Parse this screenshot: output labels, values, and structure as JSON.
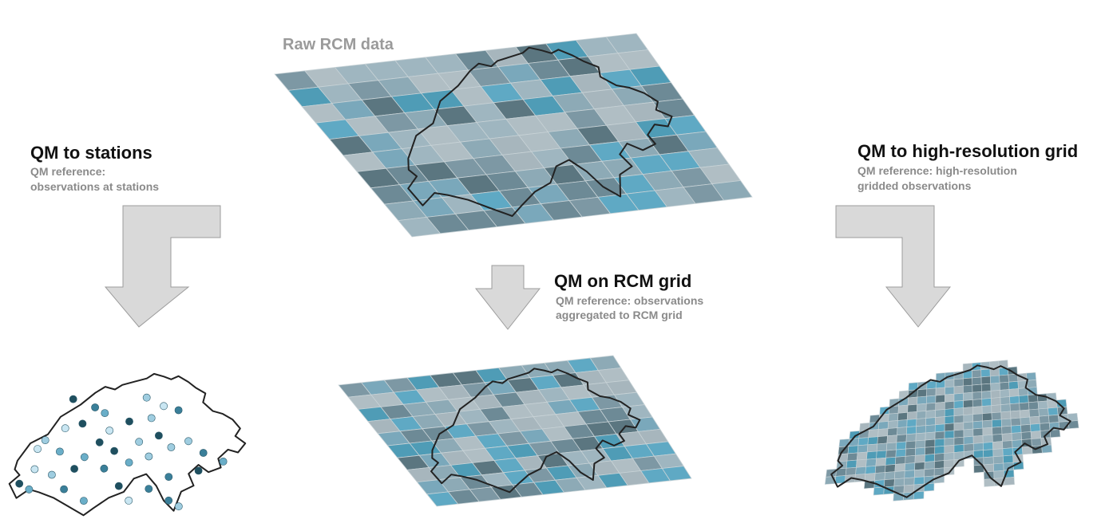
{
  "labels": {
    "raw": "Raw RCM data",
    "stations_title": "QM to stations",
    "stations_ref_line1": "QM reference:",
    "stations_ref_line2": "observations at stations",
    "rcm_title": "QM on RCM grid",
    "rcm_ref_line1": "QM reference: observations",
    "rcm_ref_line2": "aggregated to RCM grid",
    "hires_title": "QM to high-resolution grid",
    "hires_ref_line1": "QM reference: high-resolution",
    "hires_ref_line2": "gridded observations"
  },
  "palette": [
    "#5b7680",
    "#6d8a96",
    "#7d98a4",
    "#8daab6",
    "#9fb6c0",
    "#a7b6bd",
    "#7aa8bb",
    "#4f9cb6",
    "#5fa9c4",
    "#b0bec4"
  ],
  "station_palette": [
    "#1f4f5f",
    "#3a7f99",
    "#6aaec8",
    "#9fcde0",
    "#c9e6f2"
  ],
  "colors": {
    "arrow_fill": "#d9d9d9",
    "border": "#222222",
    "title": "#111111",
    "subtitle": "#8a8a8a"
  }
}
